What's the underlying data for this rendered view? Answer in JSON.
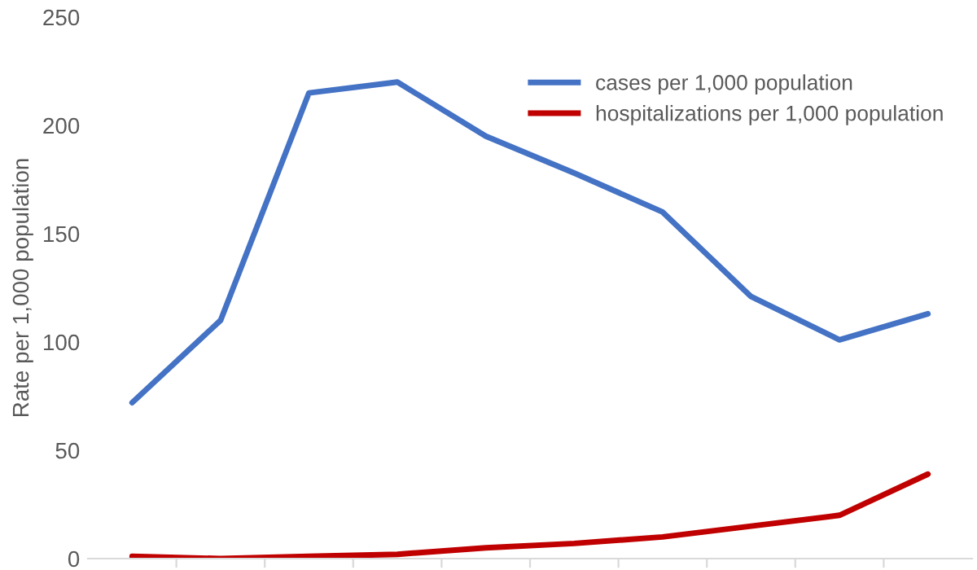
{
  "chart_data": {
    "type": "line",
    "ylabel": "Rate per 1,000 population",
    "categories": [
      null,
      null,
      null,
      null,
      null,
      null,
      null,
      null,
      null,
      null
    ],
    "series": [
      {
        "name": "cases per 1,000 population",
        "color": "#4472c4",
        "values": [
          72,
          110,
          215,
          220,
          195,
          178,
          160,
          121,
          101,
          113
        ]
      },
      {
        "name": "hospitalizations per 1,000 population",
        "color": "#c00000",
        "values": [
          1,
          0,
          1,
          2,
          5,
          7,
          10,
          15,
          20,
          39
        ]
      }
    ],
    "ylim": [
      0,
      250
    ],
    "yticks": [
      0,
      50,
      100,
      150,
      200,
      250
    ],
    "grid": false,
    "legend": "top right",
    "marker": "none",
    "line_style": "solid"
  }
}
